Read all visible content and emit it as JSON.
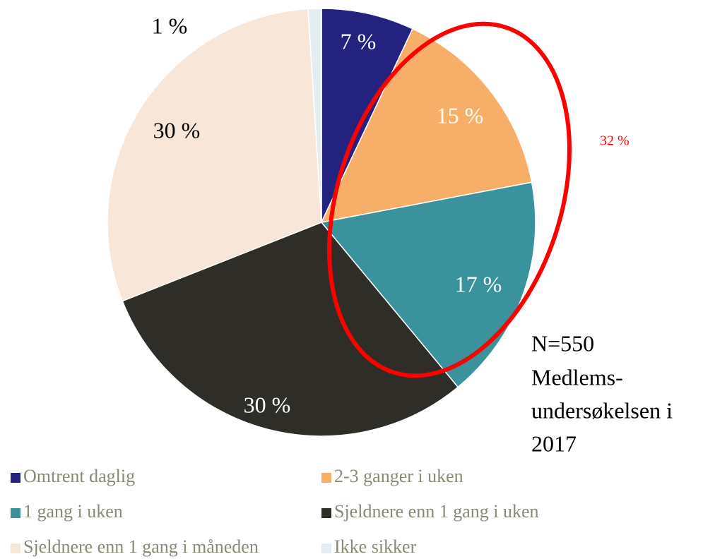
{
  "chart_data": {
    "type": "pie",
    "categories": [
      "Omtrent daglig",
      "2-3 ganger i uken",
      "1 gang i uken",
      "Sjeldnere enn 1 gang i uken",
      "Sjeldnere enn 1 gang i måneden",
      "Ikke sikker"
    ],
    "values": [
      7,
      15,
      17,
      30,
      30,
      1
    ],
    "value_labels": [
      "7 %",
      "15 %",
      "17 %",
      "30 %",
      "30 %",
      "1 %"
    ],
    "colors": [
      "#23237f",
      "#f7ae68",
      "#3a939c",
      "#2e2d27",
      "#f8e6d8",
      "#e4edf2"
    ],
    "annotations": {
      "highlight": "32 %",
      "note": [
        "N=550",
        "Medlems-",
        "undersøkelsen i",
        "2017"
      ]
    }
  }
}
